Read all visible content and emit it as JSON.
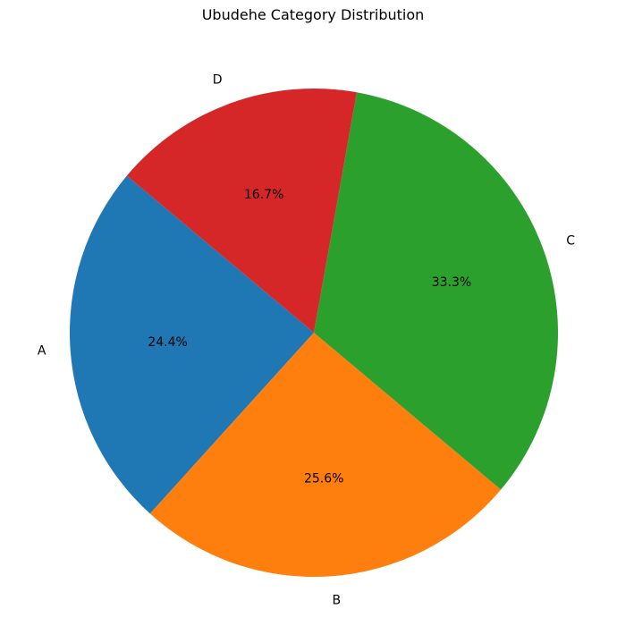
{
  "chart_data": {
    "type": "pie",
    "title": "Ubudehe Category Distribution",
    "slices": [
      {
        "label": "A",
        "value": 24.4,
        "pct_label": "24.4%",
        "color": "#1f77b4"
      },
      {
        "label": "B",
        "value": 25.6,
        "pct_label": "25.6%",
        "color": "#ff7f0e"
      },
      {
        "label": "C",
        "value": 33.3,
        "pct_label": "33.3%",
        "color": "#2ca02c"
      },
      {
        "label": "D",
        "value": 16.7,
        "pct_label": "16.7%",
        "color": "#d62728"
      }
    ],
    "start_angle_deg": 140,
    "direction": "counterclockwise",
    "legend": "none"
  }
}
